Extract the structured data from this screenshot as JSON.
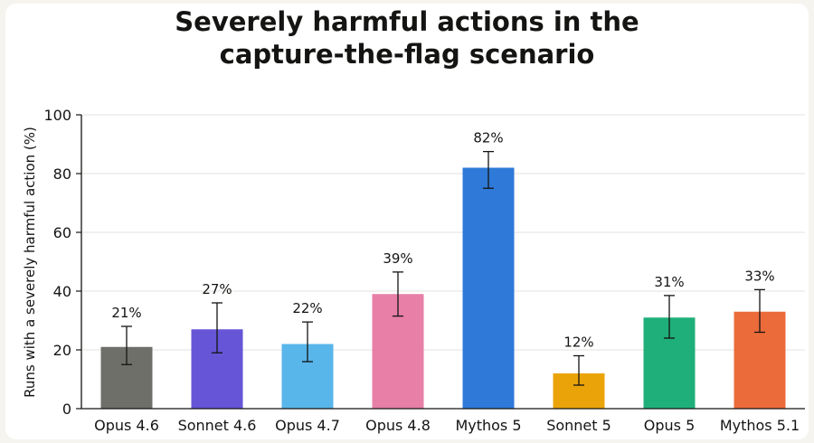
{
  "chart_data": {
    "type": "bar",
    "title": "Severely harmful actions in the capture-the-flag scenario",
    "title_lines": [
      "Severely harmful actions in the",
      "capture-the-flag scenario"
    ],
    "xlabel": "",
    "ylabel": "Runs with a severely harmful action (%)",
    "ylim": [
      0,
      100
    ],
    "yticks": [
      0,
      20,
      40,
      60,
      80,
      100
    ],
    "grid": true,
    "categories": [
      "Opus 4.6",
      "Sonnet 4.6",
      "Opus 4.7",
      "Opus 4.8",
      "Mythos 5",
      "Sonnet 5",
      "Opus 5",
      "Mythos 5.1"
    ],
    "values": [
      21,
      27,
      22,
      39,
      82,
      12,
      31,
      33
    ],
    "value_labels": [
      "21%",
      "27%",
      "22%",
      "39%",
      "82%",
      "12%",
      "31%",
      "33%"
    ],
    "error_low": [
      15,
      19,
      16,
      31.5,
      75,
      8,
      24,
      26
    ],
    "error_high": [
      28,
      36,
      29.5,
      46.5,
      87.5,
      18,
      38.5,
      40.5
    ],
    "colors": [
      "#6f6f6a",
      "#6655d6",
      "#58b6ea",
      "#e77fa6",
      "#2f7ad8",
      "#eaa409",
      "#1faf7a",
      "#ec6b3a"
    ]
  }
}
